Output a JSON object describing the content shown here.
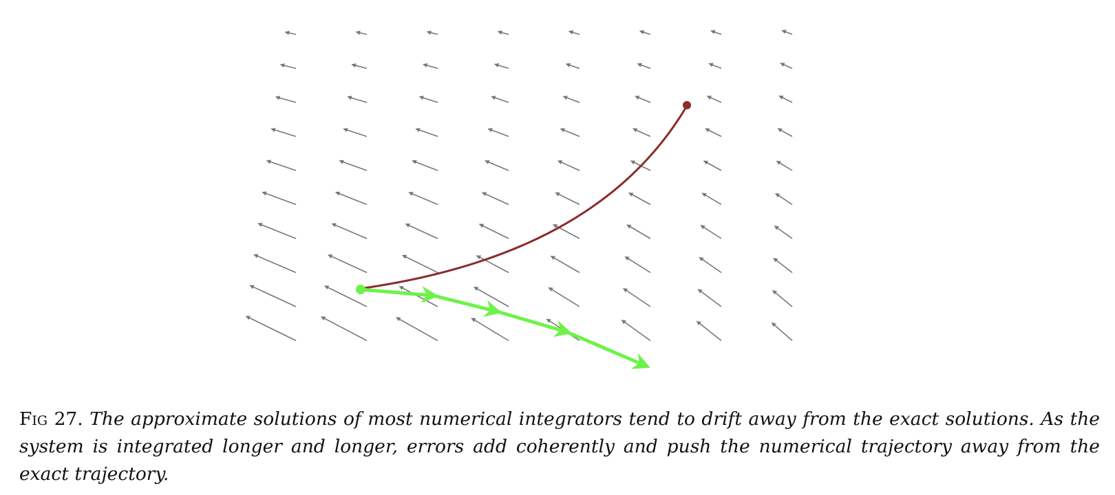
{
  "figure": {
    "colors": {
      "field_arrow": "#777777",
      "exact_trajectory": "#8b2b2b",
      "numerical_trajectory": "#6ef24a"
    }
  },
  "caption": {
    "label": "Fig 27.",
    "text": "The approximate solutions of most numerical integrators tend to drift away from the exact solutions. As the system is integrated longer and longer, errors add coherently and push the numerical trajectory away from the exact trajectory."
  }
}
